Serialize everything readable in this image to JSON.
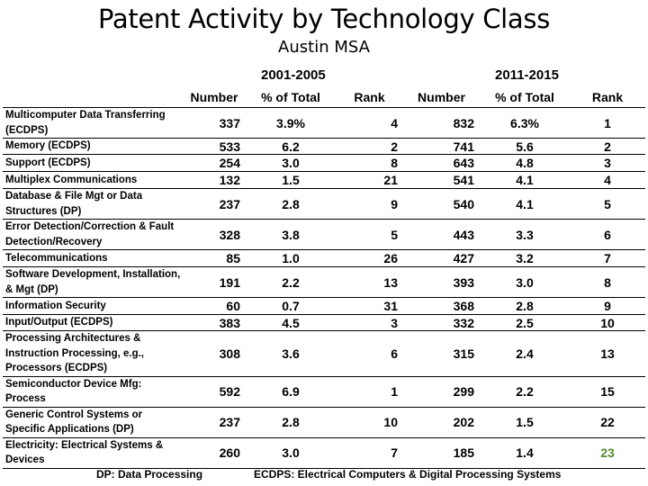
{
  "title": "Patent Activity by Technology Class",
  "subtitle": "Austin MSA",
  "periods": [
    "2001-2005",
    "2011-2015"
  ],
  "headers": [
    "",
    "Number",
    "% of Total",
    "Rank",
    "Number",
    "% of Total",
    "Rank"
  ],
  "rows": [
    {
      "cls": "Multicomputer Data Transferring (ECDPS)",
      "n1": "337",
      "p1": "3.9%",
      "r1": "4",
      "n2": "832",
      "p2": "6.3%",
      "r2": "1"
    },
    {
      "cls": "Memory (ECDPS)",
      "n1": "533",
      "p1": "6.2",
      "r1": "2",
      "n2": "741",
      "p2": "5.6",
      "r2": "2"
    },
    {
      "cls": "Support (ECDPS)",
      "n1": "254",
      "p1": "3.0",
      "r1": "8",
      "n2": "643",
      "p2": "4.8",
      "r2": "3"
    },
    {
      "cls": "Multiplex Communications",
      "n1": "132",
      "p1": "1.5",
      "r1": "21",
      "n2": "541",
      "p2": "4.1",
      "r2": "4"
    },
    {
      "cls": "Database & File Mgt or Data Structures (DP)",
      "n1": "237",
      "p1": "2.8",
      "r1": "9",
      "n2": "540",
      "p2": "4.1",
      "r2": "5"
    },
    {
      "cls": "Error Detection/Correction & Fault Detection/Recovery",
      "n1": "328",
      "p1": "3.8",
      "r1": "5",
      "n2": "443",
      "p2": "3.3",
      "r2": "6"
    },
    {
      "cls": "Telecommunications",
      "n1": "85",
      "p1": "1.0",
      "r1": "26",
      "n2": "427",
      "p2": "3.2",
      "r2": "7"
    },
    {
      "cls": "Software Development, Installation, & Mgt (DP)",
      "n1": "191",
      "p1": "2.2",
      "r1": "13",
      "n2": "393",
      "p2": "3.0",
      "r2": "8"
    },
    {
      "cls": "Information Security",
      "n1": "60",
      "p1": "0.7",
      "r1": "31",
      "n2": "368",
      "p2": "2.8",
      "r2": "9"
    },
    {
      "cls": "Input/Output (ECDPS)",
      "n1": "383",
      "p1": "4.5",
      "r1": "3",
      "n2": "332",
      "p2": "2.5",
      "r2": "10"
    },
    {
      "cls": "Processing Architectures & Instruction Processing, e.g., Processors (ECDPS)",
      "n1": "308",
      "p1": "3.6",
      "r1": "6",
      "n2": "315",
      "p2": "2.4",
      "r2": "13"
    },
    {
      "cls": "Semiconductor Device Mfg: Process",
      "n1": "592",
      "p1": "6.9",
      "r1": "1",
      "n2": "299",
      "p2": "2.2",
      "r2": "15"
    },
    {
      "cls": "Generic Control Systems or Specific Applications (DP)",
      "n1": "237",
      "p1": "2.8",
      "r1": "10",
      "n2": "202",
      "p2": "1.5",
      "r2": "22"
    },
    {
      "cls": "Electricity: Electrical Systems & Devices",
      "n1": "260",
      "p1": "3.0",
      "r1": "7",
      "n2": "185",
      "p2": "1.4",
      "r2": "23"
    }
  ],
  "footnotes": [
    "DP: Data Processing",
    "ECDPS: Electrical Computers & Digital Processing Systems"
  ],
  "colors": {
    "highlight_rank": "#4f8a2e"
  }
}
